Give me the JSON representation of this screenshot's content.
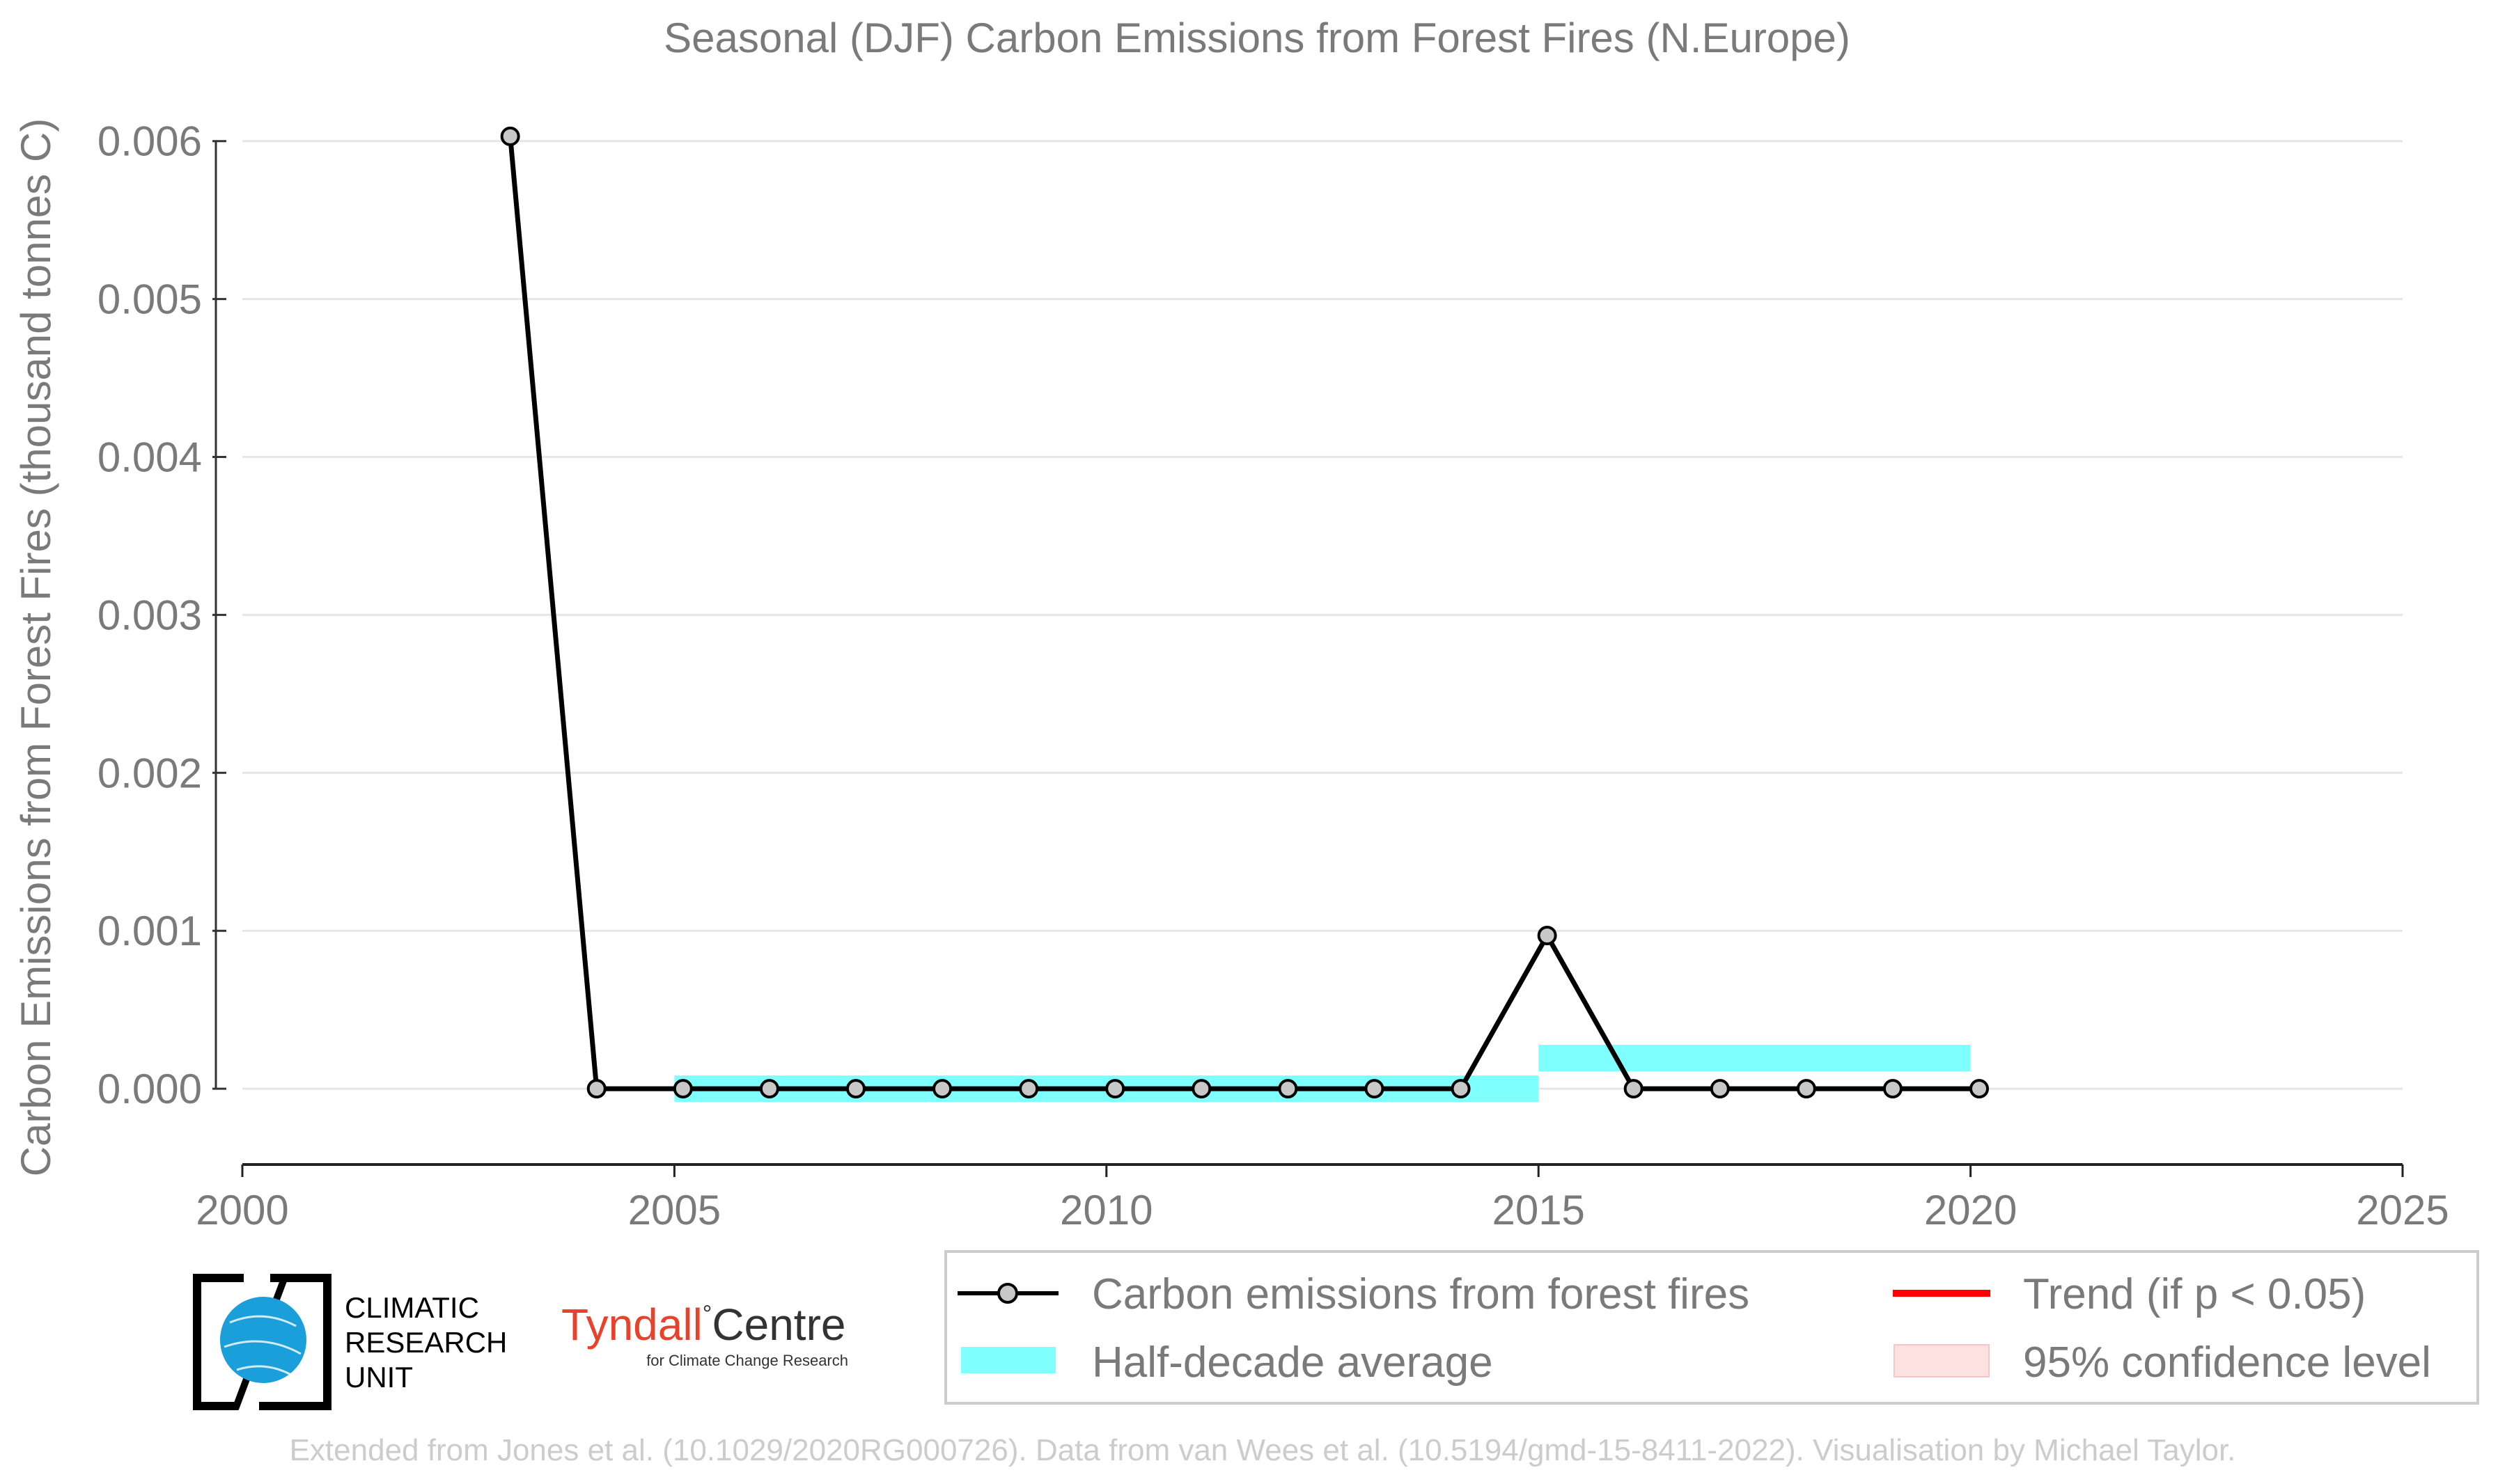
{
  "chart_data": {
    "type": "line",
    "title": "Seasonal (DJF) Carbon Emissions from Forest Fires (N.Europe)",
    "xlabel": "",
    "ylabel": "Carbon Emissions from Forest Fires (thousand tonnes C)",
    "xlim": [
      2000,
      2025
    ],
    "ylim": [
      -0.00048,
      0.0061
    ],
    "x_ticks": [
      "2000",
      "2005",
      "2010",
      "2015",
      "2020",
      "2025"
    ],
    "y_ticks": [
      "0.000",
      "0.001",
      "0.002",
      "0.003",
      "0.004",
      "0.005",
      "0.006"
    ],
    "grid": "horizontal",
    "series": [
      {
        "name": "Carbon emissions from forest fires",
        "color": "#000000",
        "marker_color": "#c8c8c8",
        "x": [
          2003,
          2004,
          2005,
          2006,
          2007,
          2008,
          2009,
          2010,
          2011,
          2012,
          2013,
          2014,
          2015,
          2016,
          2017,
          2018,
          2019,
          2020
        ],
        "values": [
          0.00603,
          0,
          0,
          0,
          0,
          0,
          0,
          0,
          0,
          0,
          0,
          0,
          0.00097,
          0,
          0,
          0,
          0,
          0
        ]
      }
    ],
    "half_decade_average": {
      "name": "Half-decade average",
      "color": "#80ffff",
      "bands": [
        {
          "x_start": 2005,
          "x_end": 2015,
          "value": 0
        },
        {
          "x_start": 2015,
          "x_end": 2020,
          "value": 0.000194
        }
      ]
    },
    "legend": {
      "placement": "bottom-right",
      "entries": [
        {
          "label": "Carbon emissions from forest fires",
          "kind": "line-marker",
          "color": "#000000"
        },
        {
          "label": "Trend (if p < 0.05)",
          "kind": "line",
          "color": "#ff0000"
        },
        {
          "label": "Half-decade average",
          "kind": "patch",
          "color": "#80ffff"
        },
        {
          "label": "95% confidence level",
          "kind": "patch",
          "color": "#fde0e0"
        }
      ]
    }
  },
  "logos": {
    "cru_lines": [
      "CLIMATIC",
      "RESEARCH",
      "UNIT"
    ],
    "tyndall_name": "Tyndall",
    "tyndall_centre": "Centre",
    "tyndall_degree": "°",
    "tyndall_sub": "for Climate Change Research"
  },
  "credit": "Extended from Jones et al. (10.1029/2020RG000726). Data from van Wees et al. (10.5194/gmd-15-8411-2022). Visualisation by Michael Taylor.",
  "colors": {
    "text_gray": "#7a7a7a",
    "grid": "#e6e6e6",
    "cru_blue": "#1a9fdb",
    "tyndall_red": "#e8412c"
  }
}
